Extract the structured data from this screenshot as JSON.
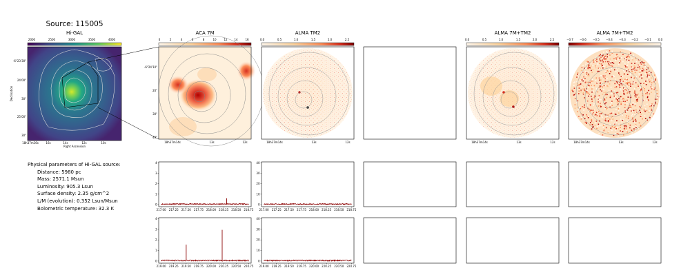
{
  "source_title": "Source: 115005",
  "panels": {
    "higal": {
      "title": "Hi-GAL",
      "colorbar_ticks": [
        "2000",
        "2500",
        "3000",
        "3500",
        "4000"
      ],
      "ylabel": "Declination",
      "xlabel": "Right Ascension",
      "yticks": [
        "-6°23'30\"",
        "24'00\"",
        "30\"",
        "25'00\"",
        "30\""
      ],
      "xticks": [
        "18h37m16s",
        "14s",
        "12s",
        "10s"
      ],
      "xticks_extra": "16s"
    },
    "aca7m": {
      "title": "ACA 7M",
      "colorbar_ticks": [
        "0",
        "2",
        "4",
        "6",
        "8",
        "10",
        "12",
        "14",
        "16"
      ],
      "yticks": [
        "-6°24'10\"",
        "20\"",
        "30\"",
        "40\""
      ],
      "xticks": [
        "18h37m14s",
        "13s",
        "12s"
      ]
    },
    "almatm2": {
      "title": "ALMA TM2",
      "colorbar_ticks": [
        "0.0",
        "0.5",
        "1.0",
        "1.5",
        "2.0",
        "2.5"
      ],
      "xticks": [
        "18h37m14s",
        "13s",
        "12s"
      ]
    },
    "alma7mtm2": {
      "title": "ALMA 7M+TM2",
      "colorbar_ticks": [
        "0.0",
        "0.5",
        "1.0",
        "1.5",
        "2.0",
        "2.5"
      ],
      "xticks": [
        "18h37m14s",
        "13s",
        "12s"
      ]
    },
    "alma7mtm2_neg": {
      "title": "ALMA 7M+TM2",
      "colorbar_ticks": [
        "−0.7",
        "−0.6",
        "−0.5",
        "−0.4",
        "−0.3",
        "−0.2",
        "−0.1",
        "0.0"
      ],
      "xticks": [
        "18h37m14s",
        "13s",
        "12s"
      ]
    }
  },
  "params": {
    "header": "Physical parameters of Hi-GAL source:",
    "distance": "Distance: 5980 pc",
    "mass": "Mass: 2571.1 Msun",
    "luminosity": "Luminosity: 905.3 Lsun",
    "surface_density": "Surface density: 2.35 g/cm^2",
    "lm": "L/M (evolution): 0.352 Lsun/Msun",
    "tbol": "Bolometric temperature: 32.3 K"
  },
  "colors": {
    "spectrum": "#8b0000",
    "contour": "#999999",
    "higal_peak": "#d4e92b"
  },
  "chart_data": [
    {
      "type": "line",
      "panel": "aca7m-spectrum-row1",
      "xticks": [
        "217.00",
        "217.25",
        "217.50",
        "217.75",
        "218.00",
        "218.25",
        "218.50",
        "218.75"
      ],
      "yticks": [
        "0",
        "1",
        "2",
        "3",
        "4"
      ],
      "xlim": [
        216.95,
        218.8
      ],
      "ylim": [
        -0.2,
        4.1
      ],
      "series": [
        {
          "x": [
            217.0,
            218.3,
            218.31,
            218.32,
            218.75
          ],
          "y": [
            0.05,
            0.05,
            0.6,
            0.05,
            0.05
          ]
        }
      ]
    },
    {
      "type": "line",
      "panel": "almatm2-spectrum-row1",
      "xticks": [
        "217.00",
        "217.25",
        "217.50",
        "217.75",
        "218.00",
        "218.25",
        "218.50",
        "218.75"
      ],
      "yticks": [
        "0",
        "10",
        "20",
        "30",
        "40"
      ],
      "xlim": [
        216.95,
        218.8
      ],
      "ylim": [
        -2,
        41
      ],
      "series": [
        {
          "x": [
            217.0,
            218.75
          ],
          "y": [
            0.5,
            0.5
          ]
        }
      ]
    },
    {
      "type": "line",
      "panel": "aca7m-spectrum-row2",
      "xticks": [
        "219.00",
        "219.25",
        "219.50",
        "219.75",
        "220.00",
        "220.25",
        "220.50",
        "220.75"
      ],
      "yticks": [
        "0",
        "1",
        "2",
        "3",
        "4"
      ],
      "xlim": [
        218.95,
        220.8
      ],
      "ylim": [
        -0.2,
        4.1
      ],
      "series": [
        {
          "x": [
            219.0,
            219.49,
            219.5,
            219.51,
            220.21,
            220.22,
            220.23,
            220.75
          ],
          "y": [
            0.05,
            0.05,
            1.55,
            0.05,
            0.05,
            2.95,
            0.05,
            0.05
          ]
        }
      ]
    },
    {
      "type": "line",
      "panel": "almatm2-spectrum-row2",
      "xticks": [
        "219.00",
        "219.25",
        "219.50",
        "219.75",
        "220.00",
        "220.25",
        "220.50",
        "220.75"
      ],
      "yticks": [
        "0",
        "10",
        "20",
        "30",
        "40"
      ],
      "xlim": [
        218.95,
        220.8
      ],
      "ylim": [
        -2,
        41
      ],
      "series": [
        {
          "x": [
            219.0,
            220.75
          ],
          "y": [
            0.5,
            0.5
          ]
        }
      ]
    }
  ]
}
